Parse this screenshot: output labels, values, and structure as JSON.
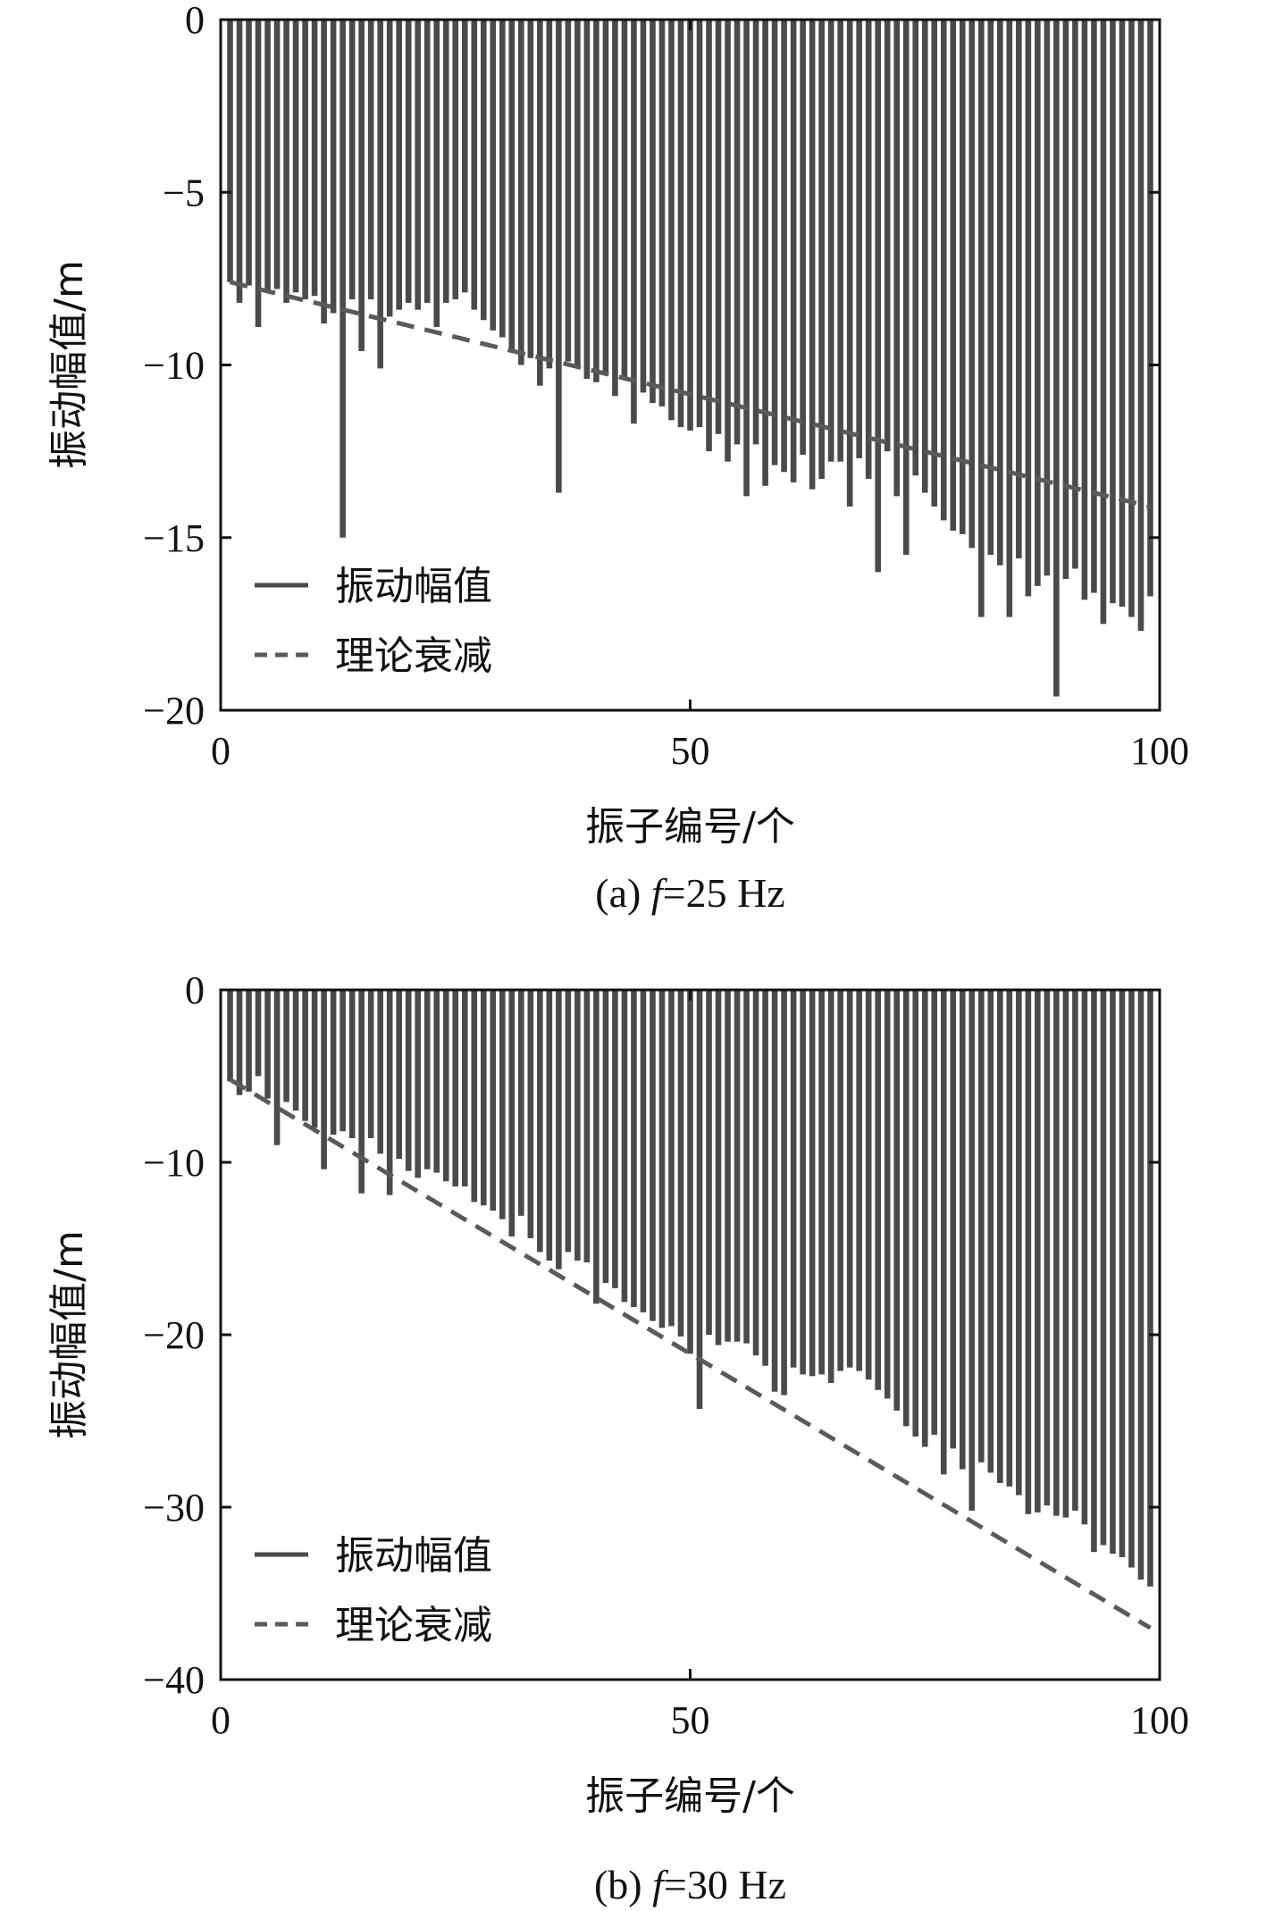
{
  "colors": {
    "bar": "#4a4a4a",
    "theory": "#5a5a5a",
    "axis": "#111111"
  },
  "chart_data": [
    {
      "type": "bar",
      "caption_prefix": "(a) ",
      "caption_var": "f",
      "caption_rest": "=25 Hz",
      "xlabel": "振子编号/个",
      "ylabel": "振动幅值/m",
      "xlim": [
        0,
        100
      ],
      "ylim": [
        -20,
        0
      ],
      "xticks": [
        "0",
        "50",
        "100"
      ],
      "yticks": [
        "0",
        "−5",
        "−10",
        "−15",
        "−20"
      ],
      "ytick_values": [
        0,
        -5,
        -10,
        -15,
        -20
      ],
      "legend": {
        "placement": "lower-left",
        "entries": [
          "振动幅值",
          "理论衰减"
        ]
      },
      "series": [
        {
          "name": "振动幅值",
          "style": "bars",
          "x": [
            1,
            2,
            3,
            4,
            5,
            6,
            7,
            8,
            9,
            10,
            11,
            12,
            13,
            14,
            15,
            16,
            17,
            18,
            19,
            20,
            21,
            22,
            23,
            24,
            25,
            26,
            27,
            28,
            29,
            30,
            31,
            32,
            33,
            34,
            35,
            36,
            37,
            38,
            39,
            40,
            41,
            42,
            43,
            44,
            45,
            46,
            47,
            48,
            49,
            50,
            51,
            52,
            53,
            54,
            55,
            56,
            57,
            58,
            59,
            60,
            61,
            62,
            63,
            64,
            65,
            66,
            67,
            68,
            69,
            70,
            71,
            72,
            73,
            74,
            75,
            76,
            77,
            78,
            79,
            80,
            81,
            82,
            83,
            84,
            85,
            86,
            87,
            88,
            89,
            90,
            91,
            92,
            93,
            94,
            95,
            96,
            97,
            98,
            99
          ],
          "values": [
            -7.6,
            -8.2,
            -7.7,
            -8.9,
            -7.9,
            -7.8,
            -8.2,
            -7.9,
            -8.1,
            -8.0,
            -8.8,
            -8.5,
            -15.0,
            -8.1,
            -9.6,
            -8.1,
            -10.1,
            -8.6,
            -8.4,
            -8.2,
            -8.4,
            -8.2,
            -8.9,
            -8.2,
            -8.1,
            -7.9,
            -8.4,
            -8.7,
            -9.0,
            -9.2,
            -9.6,
            -10.0,
            -9.8,
            -10.6,
            -10.1,
            -13.7,
            -9.9,
            -10.0,
            -10.4,
            -10.5,
            -10.3,
            -10.9,
            -10.4,
            -11.7,
            -10.8,
            -11.1,
            -11.2,
            -11.6,
            -11.8,
            -11.9,
            -11.8,
            -12.5,
            -12.0,
            -12.8,
            -12.3,
            -13.8,
            -12.3,
            -13.5,
            -12.9,
            -13.1,
            -13.4,
            -12.6,
            -13.6,
            -13.3,
            -12.8,
            -12.8,
            -14.1,
            -12.7,
            -13.3,
            -16.0,
            -12.5,
            -13.8,
            -15.5,
            -13.2,
            -13.7,
            -14.1,
            -14.5,
            -14.8,
            -14.9,
            -15.3,
            -17.3,
            -15.5,
            -15.8,
            -17.3,
            -15.6,
            -16.7,
            -16.4,
            -16.1,
            -19.6,
            -16.2,
            -15.9,
            -16.8,
            -16.6,
            -17.5,
            -16.9,
            -17.0,
            -17.3,
            -17.7,
            -16.7
          ]
        },
        {
          "name": "理论衰减",
          "style": "dashed",
          "x": [
            1,
            99
          ],
          "values": [
            -7.6,
            -14.1
          ]
        }
      ]
    },
    {
      "type": "bar",
      "caption_prefix": "(b) ",
      "caption_var": "f",
      "caption_rest": "=30 Hz",
      "xlabel": "振子编号/个",
      "ylabel": "振动幅值/m",
      "xlim": [
        0,
        100
      ],
      "ylim": [
        -40,
        0
      ],
      "xticks": [
        "0",
        "50",
        "100"
      ],
      "yticks": [
        "0",
        "−10",
        "−20",
        "−30",
        "−40"
      ],
      "ytick_values": [
        0,
        -10,
        -20,
        -30,
        -40
      ],
      "legend": {
        "placement": "lower-left",
        "entries": [
          "振动幅值",
          "理论衰减"
        ]
      },
      "series": [
        {
          "name": "振动幅值",
          "style": "bars",
          "x": [
            1,
            2,
            3,
            4,
            5,
            6,
            7,
            8,
            9,
            10,
            11,
            12,
            13,
            14,
            15,
            16,
            17,
            18,
            19,
            20,
            21,
            22,
            23,
            24,
            25,
            26,
            27,
            28,
            29,
            30,
            31,
            32,
            33,
            34,
            35,
            36,
            37,
            38,
            39,
            40,
            41,
            42,
            43,
            44,
            45,
            46,
            47,
            48,
            49,
            50,
            51,
            52,
            53,
            54,
            55,
            56,
            57,
            58,
            59,
            60,
            61,
            62,
            63,
            64,
            65,
            66,
            67,
            68,
            69,
            70,
            71,
            72,
            73,
            74,
            75,
            76,
            77,
            78,
            79,
            80,
            81,
            82,
            83,
            84,
            85,
            86,
            87,
            88,
            89,
            90,
            91,
            92,
            93,
            94,
            95,
            96,
            97,
            98,
            99
          ],
          "values": [
            -5.3,
            -6.1,
            -5.9,
            -5.0,
            -6.3,
            -9.0,
            -6.5,
            -7.0,
            -7.6,
            -8.0,
            -10.4,
            -8.4,
            -8.2,
            -8.6,
            -11.8,
            -8.6,
            -9.5,
            -11.9,
            -9.8,
            -10.5,
            -10.9,
            -10.4,
            -10.6,
            -11.1,
            -11.4,
            -11.4,
            -12.3,
            -12.5,
            -12.8,
            -13.3,
            -14.3,
            -13.1,
            -14.4,
            -15.2,
            -15.7,
            -16.2,
            -15.2,
            -15.7,
            -15.8,
            -18.2,
            -17.0,
            -17.3,
            -18.1,
            -18.4,
            -18.7,
            -19.2,
            -19.6,
            -19.5,
            -20.1,
            -21.1,
            -24.3,
            -20.0,
            -20.6,
            -20.4,
            -20.4,
            -20.5,
            -21.2,
            -21.8,
            -23.3,
            -23.5,
            -21.9,
            -22.3,
            -22.4,
            -22.3,
            -22.8,
            -22.1,
            -21.9,
            -22.1,
            -22.6,
            -23.2,
            -23.7,
            -24.4,
            -25.3,
            -25.9,
            -26.5,
            -25.8,
            -28.1,
            -26.6,
            -27.8,
            -30.2,
            -27.4,
            -28.0,
            -28.6,
            -28.8,
            -29.3,
            -30.4,
            -30.3,
            -29.9,
            -30.5,
            -30.6,
            -30.2,
            -31.0,
            -32.6,
            -32.2,
            -32.7,
            -32.9,
            -33.5,
            -34.2,
            -34.6
          ]
        },
        {
          "name": "理论衰减",
          "style": "dashed",
          "x": [
            1,
            99
          ],
          "values": [
            -5.2,
            -37.0
          ]
        }
      ]
    }
  ]
}
